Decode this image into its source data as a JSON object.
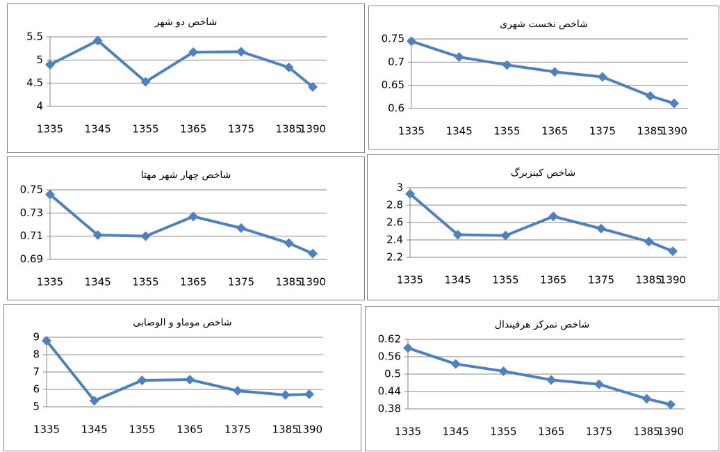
{
  "chart_data": [
    {
      "type": "line",
      "title": "شاخص دو شهر",
      "x": [
        1335,
        1345,
        1355,
        1365,
        1375,
        1385,
        1390
      ],
      "series": [
        {
          "color": "#4f81bd",
          "values": [
            4.9,
            5.42,
            4.53,
            5.17,
            5.18,
            4.84,
            4.42
          ]
        }
      ],
      "xlim": [
        1335,
        1390
      ],
      "xticks": [
        1335,
        1345,
        1355,
        1365,
        1375,
        1385,
        1390
      ],
      "ylim": [
        4,
        5.5
      ],
      "yticks": [
        4,
        4.5,
        5,
        5.5
      ],
      "grid": true
    },
    {
      "type": "line",
      "title": "شاخص نخست شهری",
      "x": [
        1335,
        1345,
        1355,
        1365,
        1375,
        1385,
        1390
      ],
      "series": [
        {
          "color": "#4f81bd",
          "values": [
            0.745,
            0.711,
            0.694,
            0.679,
            0.668,
            0.627,
            0.611
          ]
        }
      ],
      "xlim": [
        1335,
        1390
      ],
      "xticks": [
        1335,
        1345,
        1355,
        1365,
        1375,
        1385,
        1390
      ],
      "ylim": [
        0.6,
        0.75
      ],
      "yticks": [
        0.6,
        0.65,
        0.7,
        0.75
      ],
      "grid": true
    },
    {
      "type": "line",
      "title": "شاخص چهار شهر مهتا",
      "x": [
        1335,
        1345,
        1355,
        1365,
        1375,
        1385,
        1390
      ],
      "series": [
        {
          "color": "#4f81bd",
          "values": [
            0.746,
            0.711,
            0.71,
            0.727,
            0.717,
            0.704,
            0.695
          ]
        }
      ],
      "xlim": [
        1335,
        1390
      ],
      "xticks": [
        1335,
        1345,
        1355,
        1365,
        1375,
        1385,
        1390
      ],
      "ylim": [
        0.69,
        0.75
      ],
      "yticks": [
        0.69,
        0.71,
        0.73,
        0.75
      ],
      "grid": true
    },
    {
      "type": "line",
      "title": "شاخص کینزبرگ",
      "x": [
        1335,
        1345,
        1355,
        1365,
        1375,
        1385,
        1390
      ],
      "series": [
        {
          "color": "#4f81bd",
          "values": [
            2.93,
            2.46,
            2.45,
            2.67,
            2.53,
            2.38,
            2.27
          ]
        }
      ],
      "xlim": [
        1335,
        1390
      ],
      "xticks": [
        1335,
        1345,
        1355,
        1365,
        1375,
        1385,
        1390
      ],
      "ylim": [
        2.2,
        3
      ],
      "yticks": [
        2.2,
        2.4,
        2.6,
        2.8,
        3
      ],
      "grid": true
    },
    {
      "type": "line",
      "title": "شاخص موماو و الوصابی",
      "x": [
        1335,
        1345,
        1355,
        1365,
        1375,
        1385,
        1390
      ],
      "series": [
        {
          "color": "#4f81bd",
          "values": [
            8.8,
            5.35,
            6.52,
            6.56,
            5.92,
            5.68,
            5.72
          ]
        }
      ],
      "xlim": [
        1335,
        1390
      ],
      "xticks": [
        1335,
        1345,
        1355,
        1365,
        1375,
        1385,
        1390
      ],
      "ylim": [
        5,
        9
      ],
      "yticks": [
        5,
        6,
        7,
        8,
        9
      ],
      "grid": true
    },
    {
      "type": "line",
      "title": "شاخص تمرکز هرفیندال",
      "x": [
        1335,
        1345,
        1355,
        1365,
        1375,
        1385,
        1390
      ],
      "series": [
        {
          "color": "#4f81bd",
          "values": [
            0.59,
            0.535,
            0.51,
            0.48,
            0.465,
            0.415,
            0.395
          ]
        }
      ],
      "xlim": [
        1335,
        1390
      ],
      "xticks": [
        1335,
        1345,
        1355,
        1365,
        1375,
        1385,
        1390
      ],
      "ylim": [
        0.38,
        0.62
      ],
      "yticks": [
        0.38,
        0.44,
        0.5,
        0.56,
        0.62
      ],
      "grid": true
    }
  ]
}
